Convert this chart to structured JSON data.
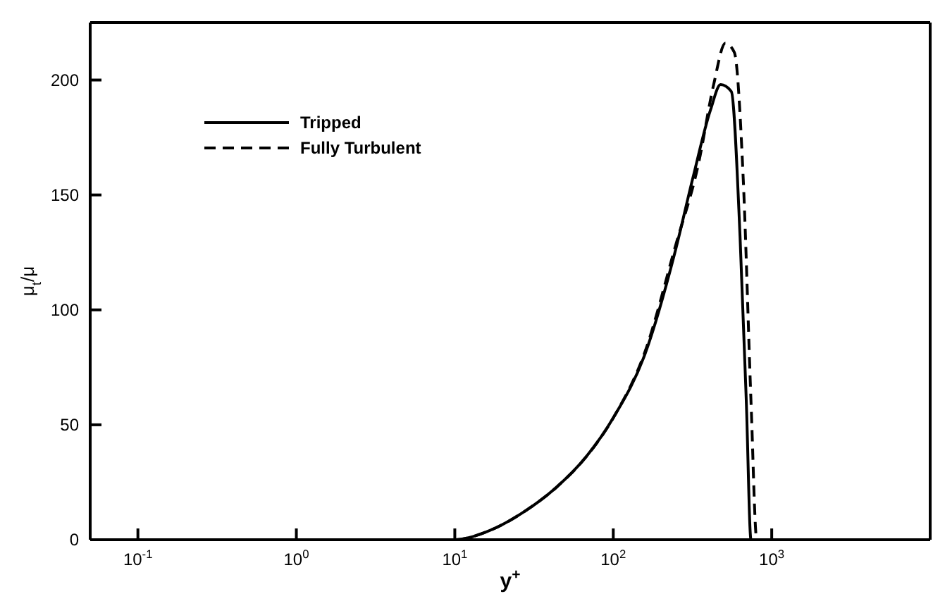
{
  "chart_data": {
    "type": "line",
    "xlabel": "y$^{+}$",
    "ylabel": "μ$_{t}$/μ",
    "log": "x",
    "xlim": [
      0.05,
      10000
    ],
    "ylim": [
      0,
      225
    ],
    "xticks": [
      {
        "value": 0.1,
        "label": "10$^{-1}$"
      },
      {
        "value": 1,
        "label": "10$^{0}$"
      },
      {
        "value": 10,
        "label": "10$^{1}$"
      },
      {
        "value": 100,
        "label": "10$^{2}$"
      },
      {
        "value": 1000,
        "label": "10$^{3}$"
      }
    ],
    "yticks": [
      0,
      50,
      100,
      150,
      200
    ],
    "legend": "top left",
    "marker": "none",
    "series": [
      {
        "name": "Tripped",
        "color": "#000000",
        "line_style": "solid",
        "x": [
          0.05,
          10,
          15.5,
          28.4,
          43.6,
          67.3,
          100,
          159,
          245,
          317,
          411,
          476,
          556,
          631,
          692,
          740,
          10000
        ],
        "values": [
          0,
          0,
          3.2,
          12.9,
          22.7,
          36,
          53,
          81,
          125,
          157,
          187,
          198,
          195,
          132,
          59,
          0,
          0
        ]
      },
      {
        "name": "Fully Turbulent",
        "color": "#000000",
        "line_style": "dashed",
        "x": [
          0.05,
          10,
          15.5,
          28.4,
          43.6,
          67.3,
          100,
          159,
          245,
          346,
          430,
          510,
          581,
          661,
          741,
          805,
          10000
        ],
        "values": [
          0,
          0,
          3.2,
          12.9,
          22.7,
          36,
          53,
          82,
          127,
          164,
          198,
          216,
          212,
          157,
          59,
          0,
          0
        ]
      }
    ]
  }
}
